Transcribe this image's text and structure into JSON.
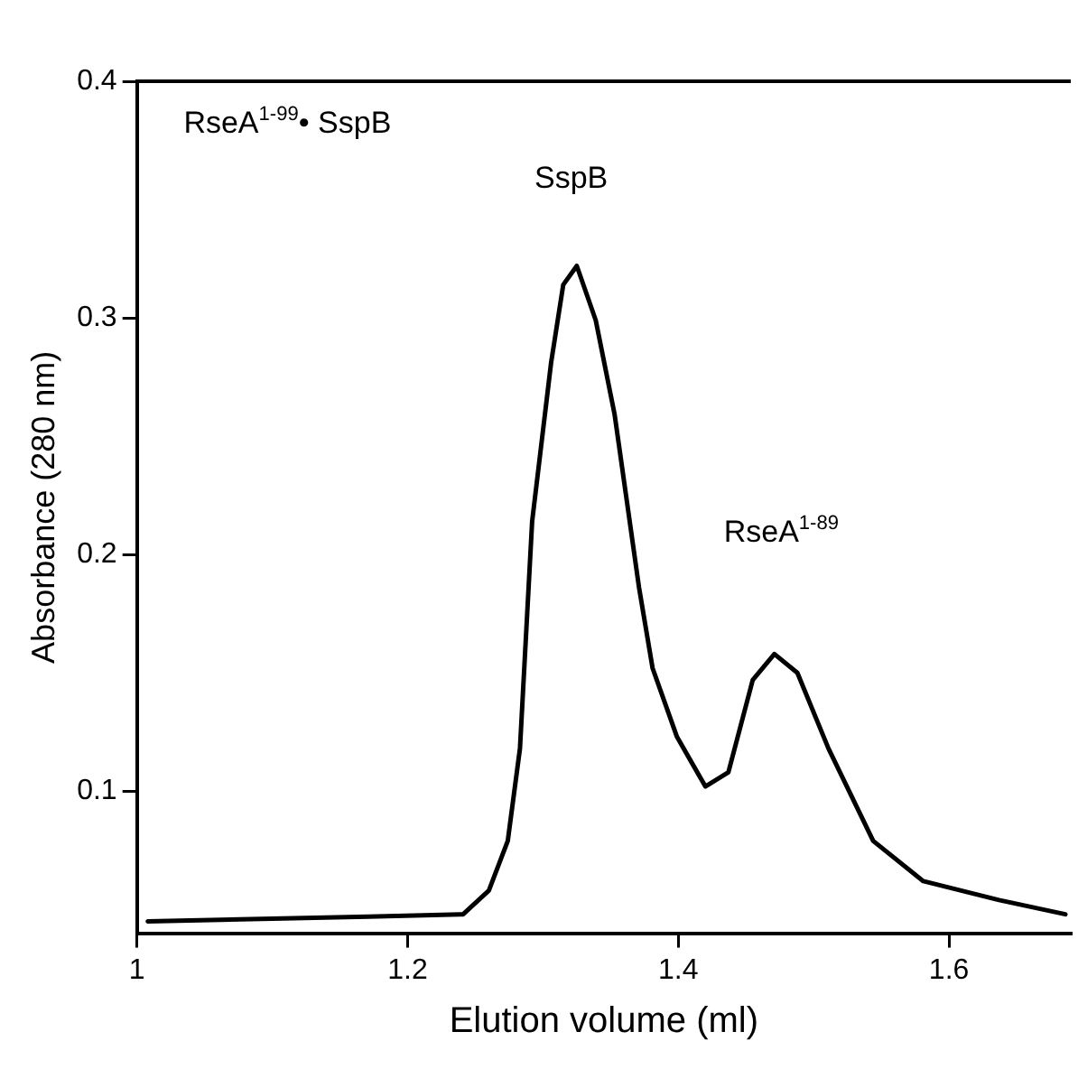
{
  "chart_data": {
    "type": "line",
    "xlabel": "Elution volume (ml)",
    "ylabel": "Absorbance (280 nm)",
    "xlim": [
      1,
      1.69
    ],
    "xticks": [
      1,
      1.2,
      1.4,
      1.6
    ],
    "ylim": [
      0.04,
      0.4
    ],
    "yticks": [
      0.1,
      0.2,
      0.3,
      0.4
    ],
    "grid": false,
    "legend": false,
    "marker": "none",
    "line_style": "solid",
    "series": [
      {
        "color": "#000000",
        "x": [
          1.008,
          1.171,
          1.241,
          1.26,
          1.274,
          1.283,
          1.292,
          1.306,
          1.315,
          1.325,
          1.339,
          1.353,
          1.371,
          1.381,
          1.399,
          1.42,
          1.437,
          1.455,
          1.471,
          1.488,
          1.511,
          1.544,
          1.581,
          1.637,
          1.686
        ],
        "values": [
          0.045,
          0.047,
          0.048,
          0.058,
          0.079,
          0.118,
          0.214,
          0.281,
          0.314,
          0.322,
          0.299,
          0.259,
          0.186,
          0.152,
          0.123,
          0.102,
          0.108,
          0.147,
          0.158,
          0.15,
          0.118,
          0.079,
          0.062,
          0.054,
          0.048
        ]
      }
    ],
    "annotations": [
      "RseA$^{1-99}$• SspB",
      "SspB",
      "RseA$^{1-89}$"
    ]
  }
}
